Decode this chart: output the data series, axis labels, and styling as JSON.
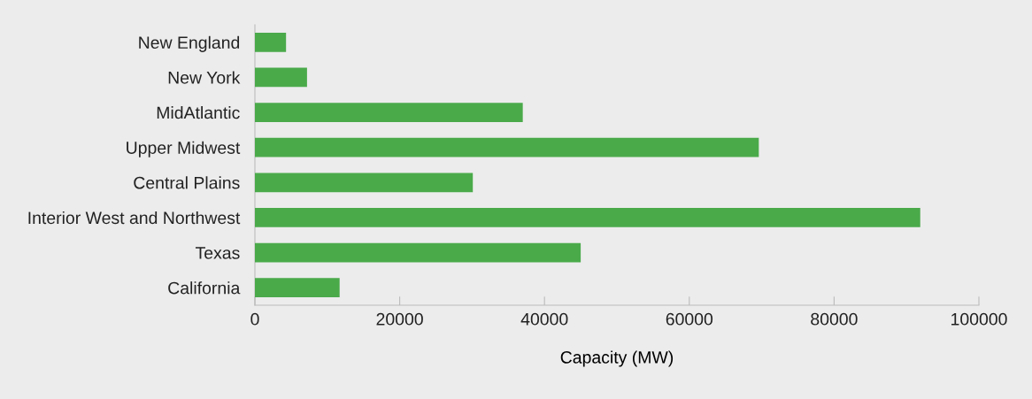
{
  "chart_data": {
    "type": "bar",
    "orientation": "horizontal",
    "xlabel": "Capacity (MW)",
    "categories": [
      "New England",
      "New York",
      "MidAtlantic",
      "Upper Midwest",
      "Central Plains",
      "Interior West and Northwest",
      "Texas",
      "California"
    ],
    "values": [
      4300,
      7200,
      37000,
      69600,
      30100,
      91900,
      45000,
      11700
    ],
    "color": "#4aaa4a",
    "xlim": [
      0,
      100000
    ],
    "xticks": [
      0,
      20000,
      40000,
      60000,
      80000,
      100000
    ],
    "grid": false,
    "legend": false
  }
}
